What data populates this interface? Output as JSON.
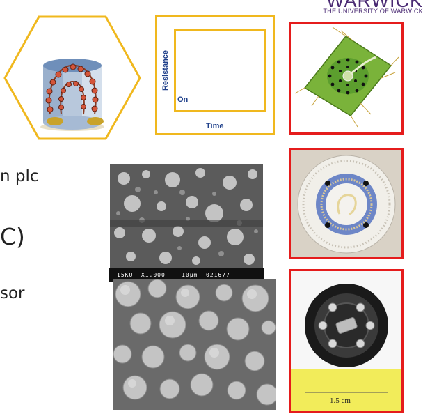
{
  "branding": {
    "logo_word": "WARWICK",
    "logo_subtitle": "THE UNIVERSITY OF WARWICK"
  },
  "body_text": {
    "line1": "n plc",
    "line2": "C)",
    "line3": "sor"
  },
  "switching_plot": {
    "ylabel": "Resistance",
    "on_label": "On",
    "xlabel": "Time"
  },
  "sem_image": {
    "info_bar": "15KU  X1,000    10µm  021677"
  },
  "sensor_photo": {
    "scale_label": "1.5 cm"
  },
  "colors": {
    "frame_gold": "#f0b81e",
    "highlight_red": "#e51c1c",
    "brand_purple": "#4a2a73",
    "axis_blue": "#1e3f8a"
  }
}
